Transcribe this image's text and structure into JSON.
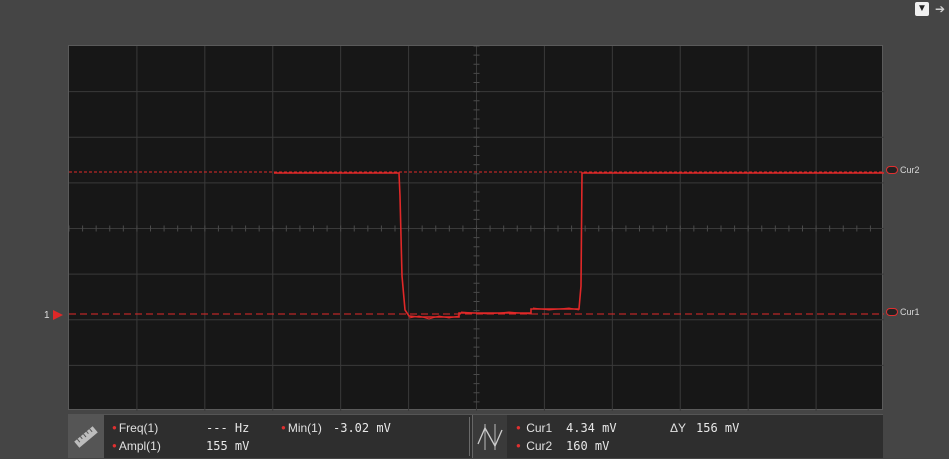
{
  "toolbar": {
    "icons": [
      "pin-icon",
      "arrow-right-icon"
    ]
  },
  "channel": {
    "label": "1",
    "color": "#e02828"
  },
  "cursors": {
    "cur2_label": "Cur2",
    "cur1_label": "Cur1"
  },
  "measurements": {
    "freq_label": "Freq(1)",
    "freq_value": "--- Hz",
    "ampl_label": "Ampl(1)",
    "ampl_value": "155 mV",
    "min_label": "Min(1)",
    "min_value": "-3.02 mV",
    "cur1_label": "Cur1",
    "cur1_value": "4.34 mV",
    "cur2_label": "Cur2",
    "cur2_value": "160 mV",
    "dy_label": "ΔY",
    "dy_value": "156 mV"
  },
  "colors": {
    "trace": "#e02828",
    "grid": "#3a3a3a",
    "screen_bg": "#171717"
  }
}
